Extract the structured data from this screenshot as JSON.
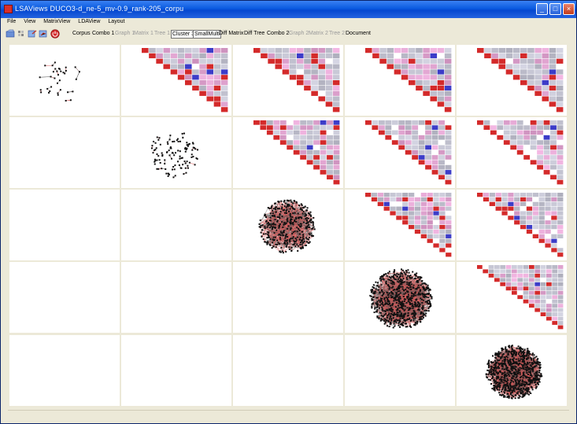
{
  "window": {
    "title": "LSAViews DUCO3-d_ne-5_mv-0.9_rank-205_corpu",
    "menu": [
      "File",
      "View",
      "MatrixView",
      "LDAView",
      "Layout"
    ],
    "tabs": [
      {
        "label": "Corpus",
        "state": "normal"
      },
      {
        "label": "Combo 1",
        "state": "normal"
      },
      {
        "label": "Graph 1",
        "state": "disabled"
      },
      {
        "label": "Matrix 1",
        "state": "disabled"
      },
      {
        "label": "Tree 1",
        "state": "disabled"
      },
      {
        "label": "Cluster 3",
        "state": "boxed"
      },
      {
        "label": "SmallMulti",
        "state": "boxed"
      },
      {
        "label": "Diff Matrix",
        "state": "normal"
      },
      {
        "label": "Diff Tree",
        "state": "normal"
      },
      {
        "label": "Combo 2",
        "state": "normal"
      },
      {
        "label": "Graph 2",
        "state": "disabled"
      },
      {
        "label": "Matrix 2",
        "state": "disabled"
      },
      {
        "label": "Tree 2",
        "state": "disabled"
      },
      {
        "label": "Document",
        "state": "normal"
      }
    ],
    "toolbar_icons": [
      "open-icon",
      "stack-icon",
      "export-icon",
      "chart-icon",
      "stop-icon"
    ],
    "grid_size": 5,
    "graph_densities": [
      35,
      110,
      380,
      700,
      800
    ],
    "colors": {
      "accent_red": "#d42a2a",
      "accent_blue": "#3c3cc8",
      "neutral_gray": "#b8bccc",
      "node": "#111111",
      "edge_red": "#dd5a5a"
    }
  }
}
